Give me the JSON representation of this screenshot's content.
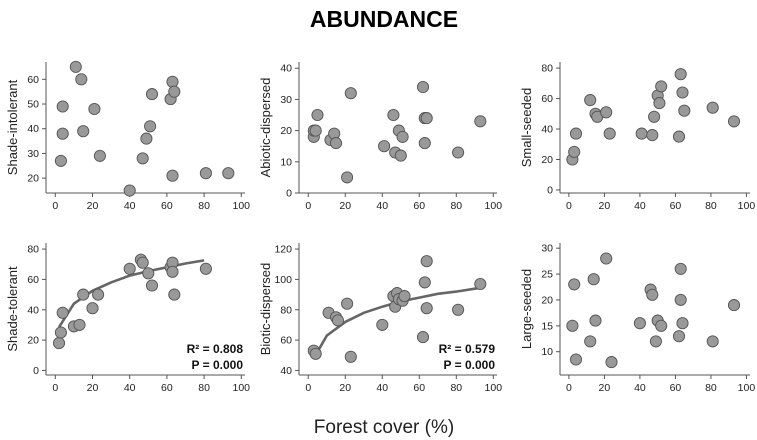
{
  "title": "ABUNDANCE",
  "xlabel": "Forest cover (%)",
  "colors": {
    "point_fill": "#999999",
    "point_stroke": "#555555",
    "curve": "#666666"
  },
  "chart_data": [
    {
      "type": "scatter",
      "ylabel": "Shade-intolerant",
      "xlim": [
        -5,
        102
      ],
      "ylim": [
        14,
        67
      ],
      "xticks": [
        0,
        20,
        40,
        60,
        80,
        100
      ],
      "yticks": [
        20,
        30,
        40,
        50,
        60
      ],
      "x": [
        3,
        4,
        4,
        11,
        14,
        15,
        21,
        24,
        40,
        47,
        49,
        51,
        52,
        62,
        63,
        63,
        64,
        81,
        93
      ],
      "y": [
        27,
        38,
        49,
        65,
        60,
        39,
        48,
        29,
        15,
        28,
        36,
        41,
        54,
        52,
        21,
        59,
        55,
        22,
        22
      ],
      "annotations": []
    },
    {
      "type": "scatter",
      "ylabel": "Abiotic-dispersed",
      "xlim": [
        -5,
        102
      ],
      "ylim": [
        0,
        42
      ],
      "xticks": [
        0,
        20,
        40,
        60,
        80,
        100
      ],
      "yticks": [
        0,
        10,
        20,
        30,
        40
      ],
      "x": [
        3,
        3,
        4,
        5,
        12,
        14,
        15,
        21,
        23,
        41,
        46,
        47,
        49,
        50,
        51,
        62,
        63,
        63,
        64,
        81,
        93
      ],
      "y": [
        18,
        20,
        20,
        25,
        17,
        19,
        16,
        5,
        32,
        15,
        25,
        13,
        20,
        12,
        18,
        34,
        24,
        16,
        24,
        13,
        23
      ],
      "annotations": []
    },
    {
      "type": "scatter",
      "ylabel": "Small-seeded",
      "xlim": [
        -5,
        102
      ],
      "ylim": [
        -2,
        84
      ],
      "xticks": [
        0,
        20,
        40,
        60,
        80,
        100
      ],
      "yticks": [
        0,
        20,
        40,
        60,
        80
      ],
      "x": [
        2,
        3,
        4,
        12,
        15,
        16,
        21,
        23,
        41,
        47,
        48,
        50,
        51,
        52,
        62,
        63,
        64,
        65,
        81,
        93
      ],
      "y": [
        20,
        25,
        37,
        59,
        50,
        48,
        51,
        37,
        37,
        36,
        48,
        62,
        57,
        68,
        35,
        76,
        64,
        52,
        54,
        45
      ],
      "annotations": []
    },
    {
      "type": "scatter",
      "ylabel": "Shade-tolerant",
      "xlim": [
        -5,
        102
      ],
      "ylim": [
        -3,
        84
      ],
      "xticks": [
        0,
        20,
        40,
        60,
        80,
        100
      ],
      "yticks": [
        0,
        20,
        40,
        60,
        80
      ],
      "x": [
        2,
        3,
        4,
        10,
        13,
        15,
        20,
        23,
        40,
        46,
        47,
        50,
        52,
        62,
        63,
        63,
        64,
        81
      ],
      "y": [
        18,
        25,
        38,
        29,
        30,
        50,
        41,
        50,
        67,
        73,
        71,
        64,
        56,
        68,
        71,
        65,
        50,
        67
      ],
      "fit": {
        "type": "log",
        "x": [
          2,
          10,
          20,
          30,
          40,
          50,
          60,
          70,
          80
        ],
        "y": [
          28.5,
          44,
          52.5,
          58,
          62.5,
          65.5,
          68,
          70.5,
          72.5
        ]
      },
      "annotations": [
        "R² = 0.808",
        "P = 0.000"
      ]
    },
    {
      "type": "scatter",
      "ylabel": "Biotic-dispersed",
      "xlim": [
        -5,
        102
      ],
      "ylim": [
        37,
        124
      ],
      "xticks": [
        0,
        20,
        40,
        60,
        80,
        100
      ],
      "yticks": [
        40,
        60,
        80,
        100,
        120
      ],
      "x": [
        3,
        4,
        11,
        15,
        16,
        21,
        23,
        40,
        46,
        47,
        48,
        49,
        51,
        52,
        62,
        63,
        64,
        64,
        81,
        93
      ],
      "y": [
        53,
        51,
        78,
        75,
        73,
        84,
        49,
        70,
        89,
        82,
        91,
        87,
        86,
        89,
        62,
        98,
        112,
        81,
        80,
        97
      ],
      "fit": {
        "type": "log",
        "x": [
          3,
          10,
          20,
          30,
          40,
          50,
          60,
          70,
          80,
          93
        ],
        "y": [
          48,
          63,
          72,
          78,
          82,
          85.5,
          88,
          90.5,
          92,
          94.5
        ]
      },
      "annotations": [
        "R² = 0.579",
        "P = 0.000"
      ]
    },
    {
      "type": "scatter",
      "ylabel": "Large-seeded",
      "xlim": [
        -5,
        102
      ],
      "ylim": [
        5.5,
        31
      ],
      "xticks": [
        0,
        20,
        40,
        60,
        80,
        100
      ],
      "yticks": [
        10,
        15,
        20,
        25,
        30
      ],
      "x": [
        2,
        3,
        4,
        12,
        14,
        15,
        21,
        24,
        40,
        46,
        47,
        49,
        50,
        52,
        62,
        63,
        63,
        64,
        81,
        93
      ],
      "y": [
        15,
        23,
        8.5,
        12,
        24,
        16,
        28,
        8,
        15.5,
        22,
        21,
        12,
        16,
        15,
        13,
        26,
        20,
        15.5,
        12,
        19
      ],
      "annotations": []
    }
  ]
}
